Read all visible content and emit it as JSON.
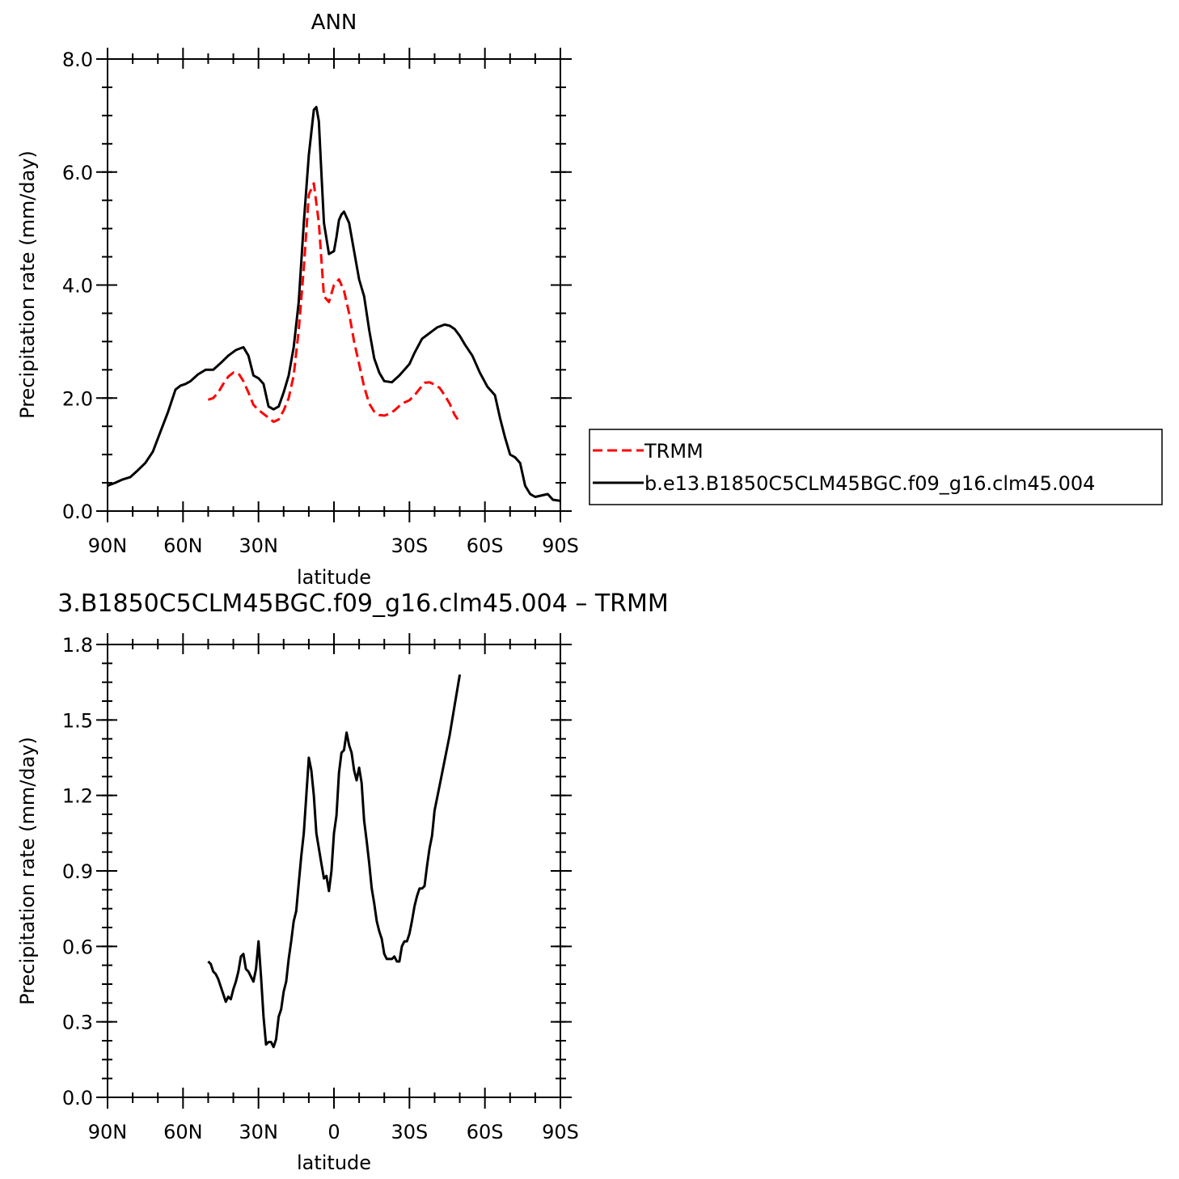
{
  "chart_data": [
    {
      "type": "line",
      "title": "ANN",
      "xlabel": "latitude",
      "ylabel": "Precipitation rate (mm/day)",
      "xlim": [
        90,
        -90
      ],
      "ylim": [
        0,
        8
      ],
      "yticks": [
        "0.0",
        "2.0",
        "4.0",
        "6.0",
        "8.0"
      ],
      "ytick_values": [
        0,
        2,
        4,
        6,
        8
      ],
      "xticks": [
        "90N",
        "60N",
        "30N",
        "",
        "30S",
        "60S",
        "90S"
      ],
      "xtick_values": [
        90,
        60,
        30,
        0,
        -30,
        -60,
        -90
      ],
      "grid": false,
      "legend": {
        "placement": "right",
        "entries": [
          {
            "label": "TRMM",
            "color": "#ff0000",
            "style": "dashed"
          },
          {
            "label": "b.e13.B1850C5CLM45BGC.f09_g16.clm45.004",
            "color": "#000000",
            "style": "solid"
          }
        ]
      },
      "series": [
        {
          "name": "TRMM",
          "color": "#ff0000",
          "style": "dashed",
          "x": [
            50,
            48,
            46,
            44,
            42,
            40,
            38,
            36,
            34,
            32,
            30,
            28,
            26,
            24,
            22,
            20,
            18,
            16,
            14,
            12,
            10,
            8,
            6,
            4,
            2,
            0,
            -2,
            -4,
            -6,
            -8,
            -10,
            -12,
            -14,
            -16,
            -18,
            -20,
            -22,
            -24,
            -26,
            -28,
            -30,
            -32,
            -34,
            -36,
            -38,
            -40,
            -42,
            -44,
            -46,
            -48,
            -50
          ],
          "y": [
            1.97,
            2.0,
            2.1,
            2.25,
            2.38,
            2.45,
            2.44,
            2.3,
            2.1,
            1.88,
            1.79,
            1.72,
            1.65,
            1.58,
            1.62,
            1.78,
            2.0,
            2.4,
            3.2,
            4.3,
            5.6,
            5.8,
            5.1,
            3.8,
            3.7,
            4.0,
            4.1,
            3.9,
            3.5,
            3.0,
            2.6,
            2.2,
            1.9,
            1.76,
            1.7,
            1.69,
            1.72,
            1.78,
            1.86,
            1.92,
            1.96,
            2.05,
            2.16,
            2.27,
            2.28,
            2.24,
            2.18,
            2.05,
            1.9,
            1.7,
            1.57
          ]
        },
        {
          "name": "b.e13.B1850C5CLM45BGC.f09_g16.clm45.004",
          "color": "#000000",
          "style": "solid",
          "x": [
            90,
            87,
            84,
            81,
            78,
            75,
            72,
            69,
            66,
            63,
            61,
            59,
            57,
            54,
            51,
            48,
            45,
            42,
            39,
            36,
            34,
            32,
            30,
            28,
            26,
            24,
            22,
            20,
            18,
            16,
            14,
            12,
            10,
            8,
            7,
            6,
            5,
            4,
            2,
            0,
            -1,
            -2,
            -3,
            -4,
            -6,
            -8,
            -10,
            -12,
            -14,
            -16,
            -18,
            -20,
            -23,
            -26,
            -28,
            -30,
            -32,
            -35,
            -38,
            -41,
            -44,
            -46,
            -48,
            -50,
            -52,
            -55,
            -58,
            -61,
            -64,
            -66,
            -68,
            -70,
            -72,
            -74,
            -76,
            -78,
            -80,
            -83,
            -85,
            -87,
            -90
          ],
          "y": [
            0.45,
            0.5,
            0.56,
            0.6,
            0.72,
            0.85,
            1.05,
            1.4,
            1.75,
            2.15,
            2.22,
            2.25,
            2.3,
            2.42,
            2.5,
            2.5,
            2.62,
            2.75,
            2.85,
            2.9,
            2.75,
            2.4,
            2.35,
            2.25,
            1.85,
            1.8,
            1.85,
            2.1,
            2.4,
            2.9,
            3.7,
            5.1,
            6.3,
            7.1,
            7.15,
            6.9,
            6.0,
            5.1,
            4.55,
            4.6,
            4.85,
            5.15,
            5.25,
            5.3,
            5.1,
            4.6,
            4.1,
            3.8,
            3.2,
            2.7,
            2.45,
            2.3,
            2.28,
            2.4,
            2.5,
            2.6,
            2.8,
            3.05,
            3.15,
            3.25,
            3.3,
            3.28,
            3.22,
            3.1,
            2.95,
            2.75,
            2.45,
            2.2,
            2.05,
            1.65,
            1.3,
            1.0,
            0.95,
            0.85,
            0.45,
            0.3,
            0.25,
            0.28,
            0.3,
            0.2,
            0.18
          ]
        }
      ]
    },
    {
      "type": "line",
      "title": "3.B1850C5CLM45BGC.f09_g16.clm45.004 – TRMM",
      "xlabel": "latitude",
      "ylabel": "Precipitation rate (mm/day)",
      "xlim": [
        90,
        -90
      ],
      "ylim": [
        0,
        1.8
      ],
      "yticks": [
        "0.0",
        "0.3",
        "0.6",
        "0.9",
        "1.2",
        "1.5",
        "1.8"
      ],
      "ytick_values": [
        0,
        0.3,
        0.6,
        0.9,
        1.2,
        1.5,
        1.8
      ],
      "xticks": [
        "90N",
        "60N",
        "30N",
        "0",
        "30S",
        "60S",
        "90S"
      ],
      "xtick_values": [
        90,
        60,
        30,
        0,
        -30,
        -60,
        -90
      ],
      "grid": false,
      "series": [
        {
          "color": "#000000",
          "style": "solid",
          "x": [
            50,
            49,
            48,
            47,
            46,
            45,
            44,
            43,
            42,
            41,
            40,
            39,
            38,
            37,
            36,
            35,
            34,
            33,
            32,
            31,
            30,
            29,
            28,
            27,
            26,
            25,
            24,
            23,
            22,
            21,
            20,
            19,
            18,
            17,
            16,
            15,
            14,
            13,
            12,
            11,
            10,
            9,
            8,
            7,
            6,
            5,
            4,
            3,
            2,
            1,
            0,
            -1,
            -2,
            -3,
            -4,
            -5,
            -6,
            -7,
            -8,
            -9,
            -10,
            -11,
            -12,
            -13,
            -14,
            -15,
            -16,
            -17,
            -18,
            -19,
            -20,
            -21,
            -22,
            -23,
            -24,
            -25,
            -26,
            -27,
            -28,
            -29,
            -30,
            -31,
            -32,
            -33,
            -34,
            -35,
            -36,
            -37,
            -38,
            -39,
            -40,
            -42,
            -44,
            -46,
            -48,
            -50
          ],
          "y": [
            0.54,
            0.53,
            0.5,
            0.49,
            0.47,
            0.44,
            0.41,
            0.38,
            0.4,
            0.39,
            0.43,
            0.46,
            0.5,
            0.56,
            0.57,
            0.51,
            0.5,
            0.48,
            0.46,
            0.51,
            0.62,
            0.48,
            0.32,
            0.21,
            0.22,
            0.22,
            0.2,
            0.23,
            0.32,
            0.35,
            0.42,
            0.46,
            0.55,
            0.62,
            0.7,
            0.74,
            0.85,
            0.96,
            1.05,
            1.2,
            1.35,
            1.3,
            1.2,
            1.05,
            0.99,
            0.93,
            0.87,
            0.88,
            0.82,
            0.9,
            1.05,
            1.12,
            1.29,
            1.37,
            1.38,
            1.45,
            1.4,
            1.37,
            1.3,
            1.26,
            1.31,
            1.25,
            1.1,
            1.02,
            0.93,
            0.83,
            0.77,
            0.7,
            0.66,
            0.63,
            0.57,
            0.55,
            0.55,
            0.55,
            0.56,
            0.54,
            0.54,
            0.6,
            0.62,
            0.62,
            0.65,
            0.7,
            0.76,
            0.8,
            0.83,
            0.83,
            0.84,
            0.92,
            0.99,
            1.04,
            1.14,
            1.24,
            1.34,
            1.44,
            1.56,
            1.68
          ]
        }
      ]
    }
  ]
}
